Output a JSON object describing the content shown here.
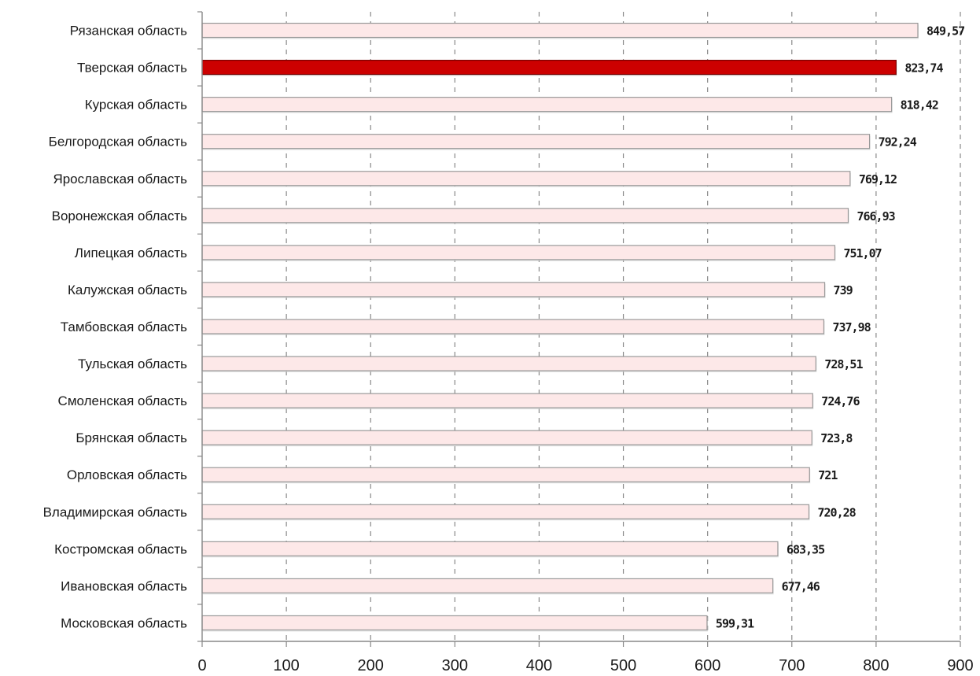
{
  "chart_data": {
    "type": "bar",
    "orientation": "horizontal",
    "categories": [
      "Рязанская область",
      "Тверская область",
      "Курская область",
      "Белгородская область",
      "Ярославская область",
      "Воронежская область",
      "Липецкая область",
      "Калужская область",
      "Тамбовская область",
      "Тульская область",
      "Смоленская область",
      "Брянская область",
      "Орловская область",
      "Владимирская область",
      "Костромская область",
      "Ивановская область",
      "Московская область"
    ],
    "values": [
      849.57,
      823.74,
      818.42,
      792.24,
      769.12,
      766.93,
      751.07,
      739,
      737.98,
      728.51,
      724.76,
      723.8,
      721,
      720.28,
      683.35,
      677.46,
      599.31
    ],
    "value_labels": [
      "849,57",
      "823,74",
      "818,42",
      "792,24",
      "769,12",
      "766,93",
      "751,07",
      "739",
      "737,98",
      "728,51",
      "724,76",
      "723,8",
      "721",
      "720,28",
      "683,35",
      "677,46",
      "599,31"
    ],
    "highlight_category": "Тверская область",
    "xlim": [
      0,
      900
    ],
    "x_ticks": [
      "0",
      "100",
      "200",
      "300",
      "400",
      "500",
      "600",
      "700",
      "800",
      "900"
    ],
    "grid": "vertical dashed",
    "legend": "none",
    "colors": {
      "bar_fill": "#fde8e8",
      "bar_stroke": "#999999",
      "highlight_fill": "#cc0000",
      "highlight_stroke": "#7a0000",
      "grid": "#888888",
      "axis": "#888888"
    }
  }
}
